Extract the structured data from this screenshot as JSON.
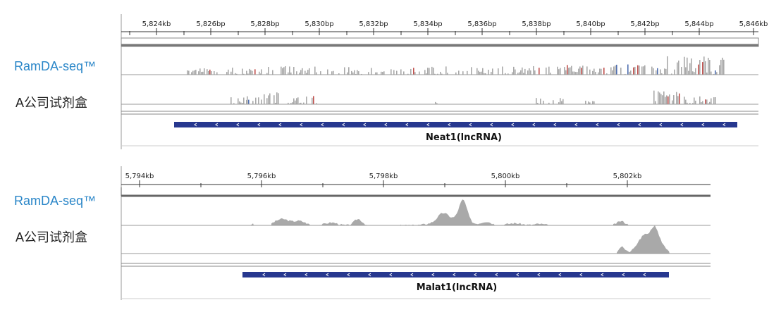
{
  "panels": [
    {
      "id": "neat1",
      "ruler_labels": [
        "5,824kb",
        "5,826bp",
        "5,828bp",
        "5,830bp",
        "5,832bp",
        "5,834bp",
        "5,836bp",
        "5,838bp",
        "5,840bp",
        "5,842bp",
        "5,844bp",
        "5,846kb"
      ],
      "tracks": [
        {
          "label": "RamDA-seq™"
        },
        {
          "label": "A公司试剂盒"
        }
      ],
      "gene": {
        "name": "Neat1(lncRNA)",
        "color": "#27388f",
        "strand": "-"
      }
    },
    {
      "id": "malat1",
      "ruler_labels": [
        "5,794kb",
        "5,796kb",
        "5,798kb",
        "5,800kb",
        "5,802kb"
      ],
      "tracks": [
        {
          "label": "RamDA-seq™"
        },
        {
          "label": "A公司试剂盒"
        }
      ],
      "gene": {
        "name": "Malat1(lncRNA)",
        "color": "#27388f",
        "strand": "-"
      }
    }
  ],
  "colors": {
    "coverage": "#a9a9a9",
    "track_border": "#999999",
    "ramda_label": "#2a86c8"
  }
}
